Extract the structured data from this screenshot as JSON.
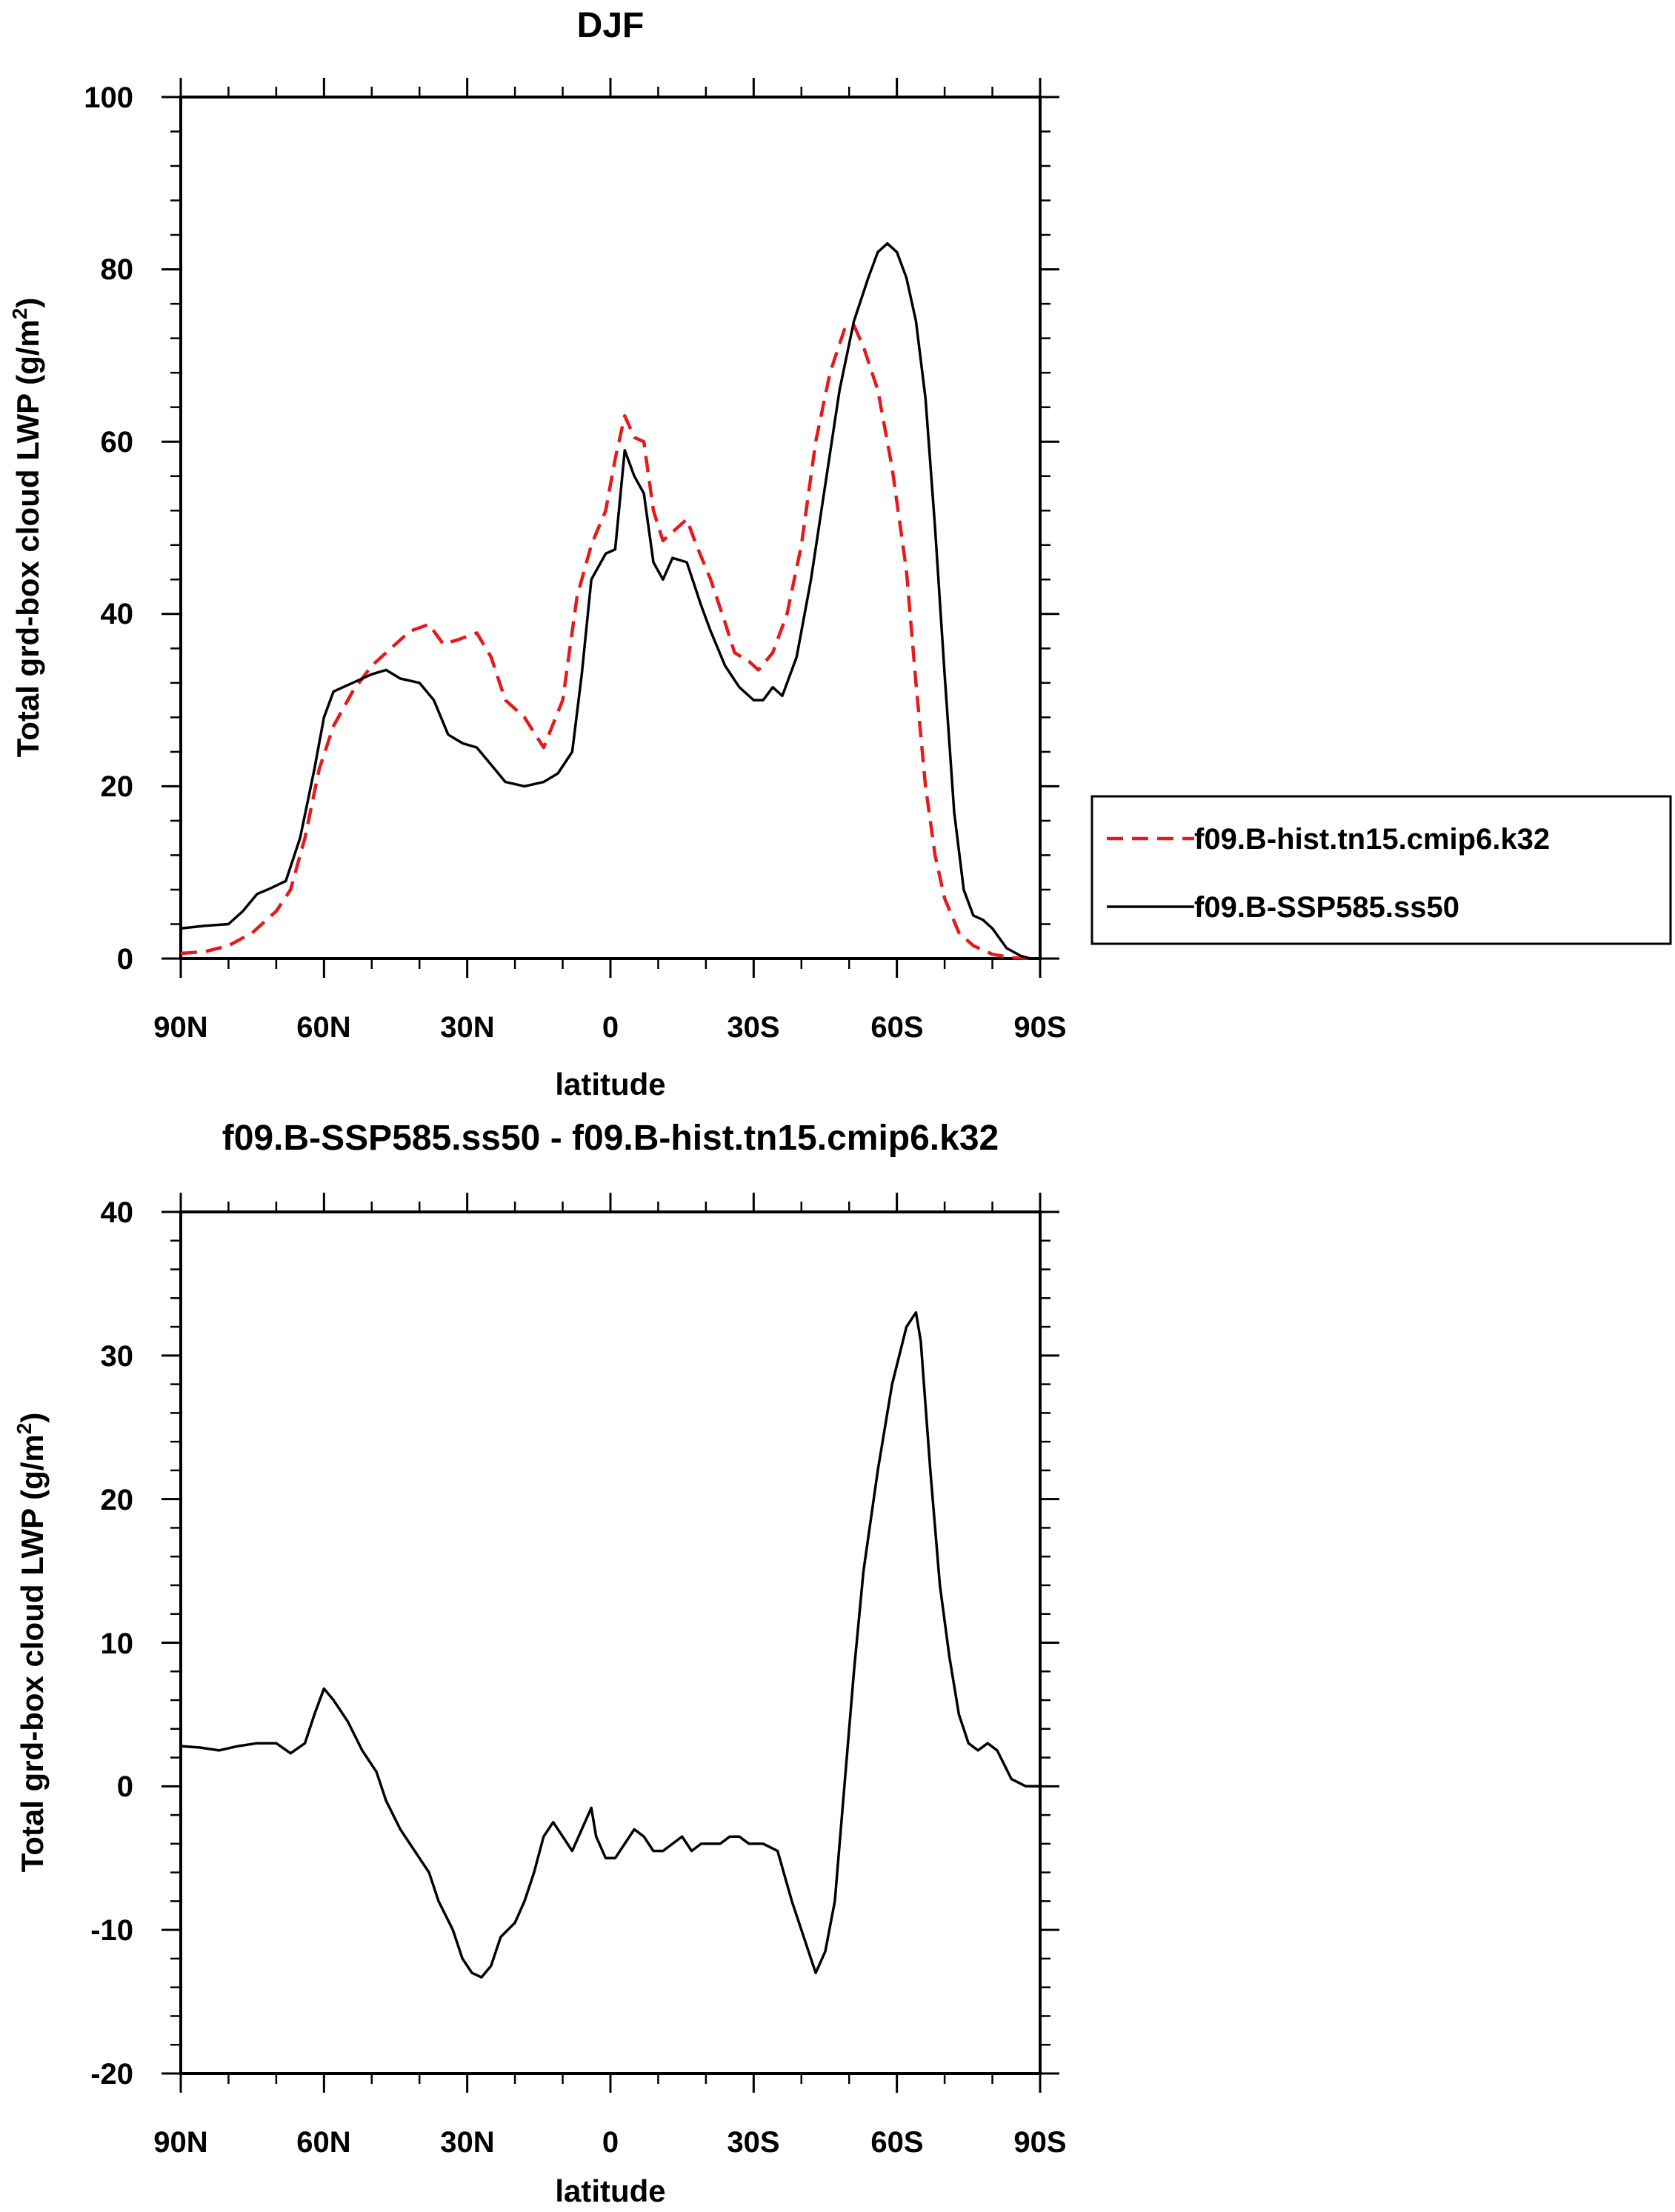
{
  "chart_data": [
    {
      "type": "line",
      "title": "DJF",
      "xlabel": "latitude",
      "ylabel": "Total grd-box cloud LWP (g/m",
      "ylabel_sup": "2",
      "ylabel_close": ")",
      "xlim": [
        90,
        -90
      ],
      "ylim": [
        0,
        100
      ],
      "x_ticks": [
        90,
        60,
        30,
        0,
        -30,
        -60,
        -90
      ],
      "x_tick_labels": [
        "90N",
        "60N",
        "30N",
        "0",
        "30S",
        "60S",
        "90S"
      ],
      "y_ticks": [
        0,
        20,
        40,
        60,
        80,
        100
      ],
      "y_tick_labels": [
        "0",
        "20",
        "40",
        "60",
        "80",
        "100"
      ],
      "legend_position": "right",
      "series": [
        {
          "name": "f09.B-hist.tn15.cmip6.k32",
          "color": "#e41a1c",
          "dash": "dashed",
          "points": [
            [
              90,
              0.6
            ],
            [
              85,
              0.8
            ],
            [
              80,
              1.5
            ],
            [
              75,
              3.0
            ],
            [
              70,
              5.5
            ],
            [
              67,
              8
            ],
            [
              64,
              14
            ],
            [
              61,
              22
            ],
            [
              58,
              27
            ],
            [
              54,
              31
            ],
            [
              50,
              34
            ],
            [
              46,
              36
            ],
            [
              42,
              38
            ],
            [
              38,
              38.8
            ],
            [
              35,
              36.5
            ],
            [
              32,
              37
            ],
            [
              28,
              37.8
            ],
            [
              25,
              35
            ],
            [
              22,
              30
            ],
            [
              18,
              28
            ],
            [
              14,
              24.5
            ],
            [
              10,
              30
            ],
            [
              7,
              42
            ],
            [
              4,
              48
            ],
            [
              1,
              52
            ],
            [
              -1,
              58
            ],
            [
              -3,
              63
            ],
            [
              -5,
              60.5
            ],
            [
              -7,
              60
            ],
            [
              -9,
              52
            ],
            [
              -11,
              48.5
            ],
            [
              -14,
              50
            ],
            [
              -16,
              51
            ],
            [
              -18,
              48
            ],
            [
              -21,
              44
            ],
            [
              -24,
              39
            ],
            [
              -26,
              35.5
            ],
            [
              -29,
              34.5
            ],
            [
              -31,
              33.5
            ],
            [
              -34,
              35.5
            ],
            [
              -37,
              40
            ],
            [
              -40,
              48
            ],
            [
              -43,
              60
            ],
            [
              -46,
              68
            ],
            [
              -49,
              73
            ],
            [
              -51,
              73.5
            ],
            [
              -53,
              71
            ],
            [
              -56,
              66
            ],
            [
              -59,
              57
            ],
            [
              -62,
              45
            ],
            [
              -64,
              32
            ],
            [
              -66,
              20
            ],
            [
              -68,
              12
            ],
            [
              -70,
              7
            ],
            [
              -73,
              3
            ],
            [
              -76,
              1.5
            ],
            [
              -80,
              0.5
            ],
            [
              -84,
              0.1
            ],
            [
              -88,
              0
            ]
          ]
        },
        {
          "name": "f09.B-SSP585.ss50",
          "color": "#000000",
          "dash": "solid",
          "points": [
            [
              90,
              3.5
            ],
            [
              85,
              3.8
            ],
            [
              80,
              4.0
            ],
            [
              77,
              5.5
            ],
            [
              74,
              7.5
            ],
            [
              71,
              8.2
            ],
            [
              68,
              9
            ],
            [
              65,
              14
            ],
            [
              62,
              22
            ],
            [
              60,
              28
            ],
            [
              58,
              31
            ],
            [
              54,
              32
            ],
            [
              50,
              33
            ],
            [
              47,
              33.5
            ],
            [
              44,
              32.5
            ],
            [
              40,
              32
            ],
            [
              37,
              30
            ],
            [
              34,
              26
            ],
            [
              31,
              25
            ],
            [
              28,
              24.5
            ],
            [
              25,
              22.5
            ],
            [
              22,
              20.5
            ],
            [
              18,
              20
            ],
            [
              14,
              20.5
            ],
            [
              11,
              21.5
            ],
            [
              8,
              24
            ],
            [
              6,
              33
            ],
            [
              4,
              44
            ],
            [
              1,
              47
            ],
            [
              -1,
              47.5
            ],
            [
              -3,
              59
            ],
            [
              -5,
              56
            ],
            [
              -7,
              54
            ],
            [
              -9,
              46
            ],
            [
              -11,
              44
            ],
            [
              -13,
              46.5
            ],
            [
              -16,
              46
            ],
            [
              -19,
              41
            ],
            [
              -21,
              38
            ],
            [
              -24,
              34
            ],
            [
              -27,
              31.5
            ],
            [
              -30,
              30
            ],
            [
              -32,
              30
            ],
            [
              -34,
              31.5
            ],
            [
              -36,
              30.5
            ],
            [
              -39,
              35
            ],
            [
              -42,
              44
            ],
            [
              -45,
              55
            ],
            [
              -48,
              66
            ],
            [
              -51,
              74
            ],
            [
              -54,
              79
            ],
            [
              -56,
              82
            ],
            [
              -58,
              83
            ],
            [
              -60,
              82
            ],
            [
              -62,
              79
            ],
            [
              -64,
              74
            ],
            [
              -66,
              65
            ],
            [
              -68,
              50
            ],
            [
              -70,
              33
            ],
            [
              -72,
              17
            ],
            [
              -74,
              8
            ],
            [
              -76,
              5
            ],
            [
              -78,
              4.5
            ],
            [
              -80,
              3.5
            ],
            [
              -83,
              1.2
            ],
            [
              -86,
              0.3
            ],
            [
              -88,
              0
            ]
          ]
        }
      ]
    },
    {
      "type": "line",
      "title": "f09.B-SSP585.ss50 - f09.B-hist.tn15.cmip6.k32",
      "xlabel": "latitude",
      "ylabel": "Total grd-box cloud LWP (g/m",
      "ylabel_sup": "2",
      "ylabel_close": ")",
      "xlim": [
        90,
        -90
      ],
      "ylim": [
        -20,
        40
      ],
      "x_ticks": [
        90,
        60,
        30,
        0,
        -30,
        -60,
        -90
      ],
      "x_tick_labels": [
        "90N",
        "60N",
        "30N",
        "0",
        "30S",
        "60S",
        "90S"
      ],
      "y_ticks": [
        -20,
        -10,
        0,
        10,
        20,
        30,
        40
      ],
      "y_tick_labels": [
        "-20",
        "-10",
        "0",
        "10",
        "20",
        "30",
        "40"
      ],
      "series": [
        {
          "color": "#000000",
          "dash": "solid",
          "points": [
            [
              90,
              2.8
            ],
            [
              86,
              2.7
            ],
            [
              82,
              2.5
            ],
            [
              78,
              2.8
            ],
            [
              74,
              3.0
            ],
            [
              70,
              3.0
            ],
            [
              67,
              2.3
            ],
            [
              64,
              3.0
            ],
            [
              62,
              5.0
            ],
            [
              60,
              6.8
            ],
            [
              58,
              6.0
            ],
            [
              55,
              4.5
            ],
            [
              52,
              2.5
            ],
            [
              49,
              1.0
            ],
            [
              47,
              -1.0
            ],
            [
              44,
              -3.0
            ],
            [
              41,
              -4.5
            ],
            [
              38,
              -6.0
            ],
            [
              36,
              -8.0
            ],
            [
              33,
              -10.0
            ],
            [
              31,
              -12.0
            ],
            [
              29,
              -13.0
            ],
            [
              27,
              -13.3
            ],
            [
              25,
              -12.5
            ],
            [
              23,
              -10.5
            ],
            [
              20,
              -9.5
            ],
            [
              18,
              -8.0
            ],
            [
              16,
              -6.0
            ],
            [
              14,
              -3.5
            ],
            [
              12,
              -2.5
            ],
            [
              10,
              -3.5
            ],
            [
              8,
              -4.5
            ],
            [
              6,
              -3.0
            ],
            [
              4,
              -1.5
            ],
            [
              3,
              -3.5
            ],
            [
              1,
              -5.0
            ],
            [
              -1,
              -5.0
            ],
            [
              -3,
              -4.0
            ],
            [
              -5,
              -3.0
            ],
            [
              -7,
              -3.5
            ],
            [
              -9,
              -4.5
            ],
            [
              -11,
              -4.5
            ],
            [
              -13,
              -4.0
            ],
            [
              -15,
              -3.5
            ],
            [
              -17,
              -4.5
            ],
            [
              -19,
              -4.0
            ],
            [
              -21,
              -4.0
            ],
            [
              -23,
              -4.0
            ],
            [
              -25,
              -3.5
            ],
            [
              -27,
              -3.5
            ],
            [
              -29,
              -4.0
            ],
            [
              -32,
              -4.0
            ],
            [
              -35,
              -4.5
            ],
            [
              -38,
              -8.0
            ],
            [
              -41,
              -11.0
            ],
            [
              -43,
              -13.0
            ],
            [
              -45,
              -11.5
            ],
            [
              -47,
              -8.0
            ],
            [
              -49,
              0.0
            ],
            [
              -51,
              8.0
            ],
            [
              -53,
              15.0
            ],
            [
              -56,
              22.0
            ],
            [
              -59,
              28.0
            ],
            [
              -62,
              32.0
            ],
            [
              -64,
              33.0
            ],
            [
              -65,
              31.0
            ],
            [
              -67,
              22.0
            ],
            [
              -69,
              14.0
            ],
            [
              -71,
              9.0
            ],
            [
              -73,
              5.0
            ],
            [
              -75,
              3.0
            ],
            [
              -77,
              2.5
            ],
            [
              -79,
              3.0
            ],
            [
              -81,
              2.5
            ],
            [
              -84,
              0.5
            ],
            [
              -87,
              0.0
            ],
            [
              -90,
              0.0
            ]
          ]
        }
      ]
    }
  ]
}
